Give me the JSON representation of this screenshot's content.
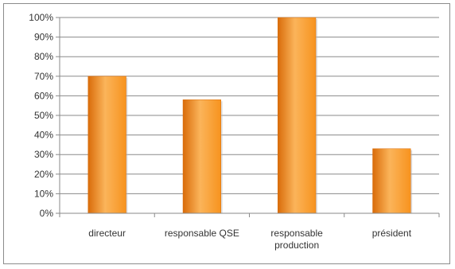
{
  "chart_data": {
    "type": "bar",
    "title": "",
    "xlabel": "",
    "ylabel": "",
    "categories": [
      [
        "directeur"
      ],
      [
        "responsable QSE"
      ],
      [
        "responsable",
        "production"
      ],
      [
        "président"
      ]
    ],
    "values": [
      0.7,
      0.58,
      1.0,
      0.33
    ],
    "ylim": [
      0,
      1
    ],
    "yticks": [
      "0%",
      "10%",
      "20%",
      "30%",
      "40%",
      "50%",
      "60%",
      "70%",
      "80%",
      "90%",
      "100%"
    ],
    "grid": true,
    "legend": "none",
    "bar_color": "#f7931e",
    "bar_color_light": "#fbb45a",
    "bar_color_dark": "#d96c0a"
  }
}
